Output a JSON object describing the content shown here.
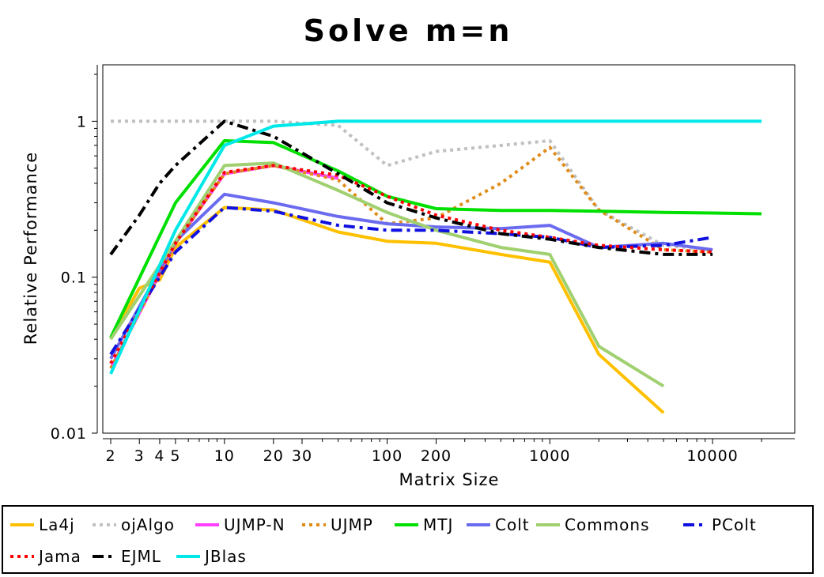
{
  "chart_data": {
    "type": "line",
    "title": "Solve m=n",
    "xlabel": "Matrix Size",
    "ylabel": "Relative Performance",
    "x_scale": "log",
    "y_scale": "log",
    "xlim": [
      2,
      20000
    ],
    "ylim": [
      0.01,
      2
    ],
    "grid": false,
    "legend_position": "bottom",
    "x_ticks": [
      {
        "value": 2,
        "label": "2"
      },
      {
        "value": 3,
        "label": "3"
      },
      {
        "value": 4,
        "label": "4"
      },
      {
        "value": 5,
        "label": "5"
      },
      {
        "value": 10,
        "label": "10"
      },
      {
        "value": 20,
        "label": "20"
      },
      {
        "value": 30,
        "label": "30"
      },
      {
        "value": 100,
        "label": "100"
      },
      {
        "value": 200,
        "label": "200"
      },
      {
        "value": 1000,
        "label": "1000"
      },
      {
        "value": 10000,
        "label": "10000"
      }
    ],
    "y_ticks": [
      {
        "value": 1,
        "label": "1"
      },
      {
        "value": 0.1,
        "label": "0.1"
      },
      {
        "value": 0.01,
        "label": "0.01"
      }
    ],
    "series": [
      {
        "name": "La4j",
        "color": "#ffc000",
        "style": "solid",
        "x": [
          2,
          3,
          4,
          5,
          10,
          20,
          50,
          100,
          200,
          500,
          1000,
          2000,
          5000
        ],
        "y": [
          0.04,
          0.085,
          0.096,
          0.155,
          0.28,
          0.27,
          0.195,
          0.17,
          0.165,
          0.14,
          0.125,
          0.032,
          0.0135
        ]
      },
      {
        "name": "ojAlgo",
        "color": "#c0c0c0",
        "style": "dotted",
        "x": [
          2,
          5,
          10,
          20,
          50,
          100,
          200,
          500,
          1000,
          2000,
          5000,
          10000
        ],
        "y": [
          1.0,
          1.0,
          1.0,
          1.0,
          0.94,
          0.52,
          0.64,
          0.7,
          0.75,
          0.27,
          0.16,
          0.15
        ]
      },
      {
        "name": "UJMP-N",
        "color": "#ff40ff",
        "style": "solid",
        "x": [
          2,
          5,
          10,
          20,
          50
        ],
        "y": [
          0.026,
          0.165,
          0.46,
          0.52,
          0.43
        ]
      },
      {
        "name": "UJMP",
        "color": "#e08c1a",
        "style": "dotted",
        "x": [
          2,
          5,
          10,
          20,
          50,
          100,
          200,
          500,
          1000,
          2000,
          5000,
          10000
        ],
        "y": [
          0.026,
          0.165,
          0.46,
          0.52,
          0.42,
          0.22,
          0.24,
          0.4,
          0.68,
          0.27,
          0.15,
          0.145
        ]
      },
      {
        "name": "MTJ",
        "color": "#00e000",
        "style": "solid",
        "x": [
          2,
          5,
          10,
          20,
          50,
          100,
          200,
          500,
          1000,
          2000,
          5000,
          10000,
          20000
        ],
        "y": [
          0.041,
          0.3,
          0.75,
          0.73,
          0.48,
          0.33,
          0.275,
          0.268,
          0.268,
          0.265,
          0.26,
          0.258,
          0.255
        ]
      },
      {
        "name": "Colt",
        "color": "#6b6bf0",
        "style": "solid",
        "x": [
          2,
          5,
          10,
          20,
          50,
          100,
          200,
          500,
          1000,
          2000,
          5000,
          10000
        ],
        "y": [
          0.03,
          0.17,
          0.34,
          0.3,
          0.245,
          0.22,
          0.21,
          0.205,
          0.215,
          0.155,
          0.165,
          0.15
        ]
      },
      {
        "name": "Commons",
        "color": "#a0d070",
        "style": "solid",
        "x": [
          2,
          5,
          10,
          20,
          50,
          100,
          200,
          500,
          1000,
          2000,
          5000
        ],
        "y": [
          0.04,
          0.17,
          0.52,
          0.54,
          0.36,
          0.26,
          0.2,
          0.155,
          0.14,
          0.036,
          0.02
        ]
      },
      {
        "name": "PColt",
        "color": "#1010e0",
        "style": "dashdot",
        "x": [
          2,
          5,
          10,
          20,
          50,
          100,
          200,
          500,
          1000,
          2000,
          5000,
          10000
        ],
        "y": [
          0.032,
          0.145,
          0.28,
          0.265,
          0.215,
          0.2,
          0.2,
          0.19,
          0.18,
          0.155,
          0.16,
          0.18
        ]
      },
      {
        "name": "Jama",
        "color": "#ff0000",
        "style": "dotted",
        "x": [
          2,
          5,
          10,
          20,
          50,
          100,
          200,
          500,
          1000,
          2000,
          5000,
          10000
        ],
        "y": [
          0.028,
          0.165,
          0.47,
          0.52,
          0.45,
          0.33,
          0.25,
          0.2,
          0.18,
          0.16,
          0.15,
          0.145
        ]
      },
      {
        "name": "EJML",
        "color": "#000000",
        "style": "dashdot",
        "x": [
          2,
          3,
          4,
          5,
          10,
          20,
          50,
          100,
          200,
          500,
          1000,
          2000,
          5000,
          10000
        ],
        "y": [
          0.14,
          0.25,
          0.4,
          0.52,
          1.0,
          0.8,
          0.46,
          0.3,
          0.24,
          0.19,
          0.175,
          0.155,
          0.14,
          0.14
        ]
      },
      {
        "name": "JBlas",
        "color": "#00e8e8",
        "style": "solid",
        "x": [
          2,
          5,
          10,
          20,
          50,
          100,
          200,
          500,
          1000,
          2000,
          5000,
          10000,
          20000
        ],
        "y": [
          0.024,
          0.2,
          0.7,
          0.93,
          1.0,
          1.0,
          1.0,
          1.0,
          1.0,
          1.0,
          1.0,
          1.0,
          1.0
        ]
      }
    ]
  }
}
